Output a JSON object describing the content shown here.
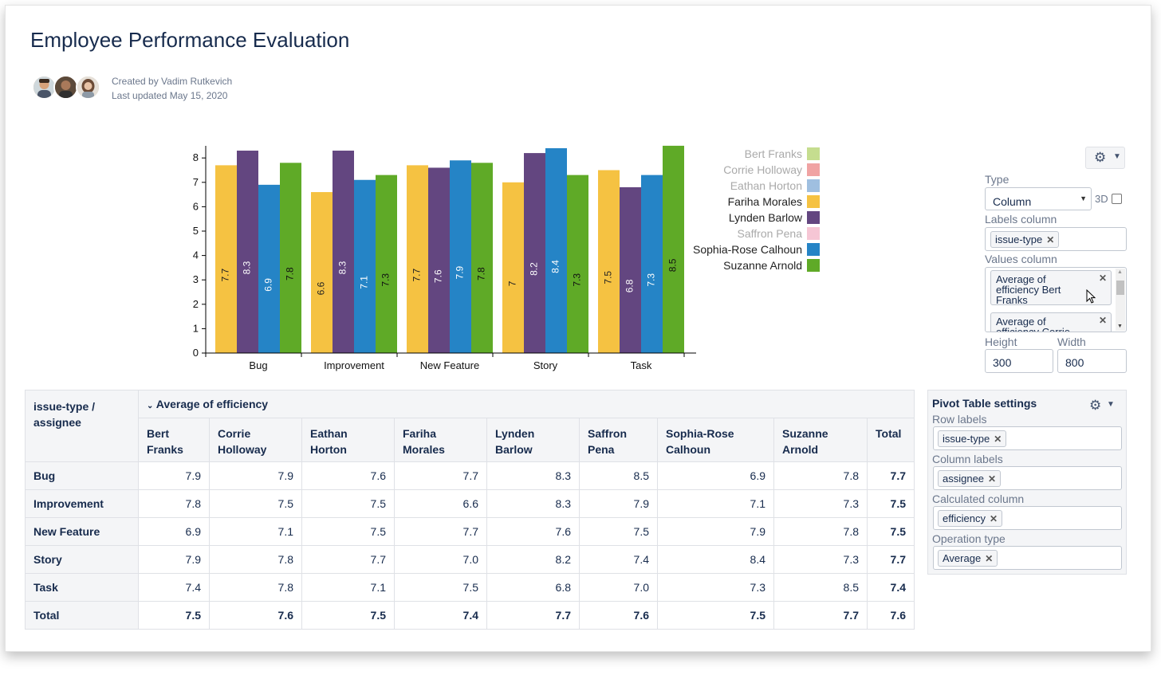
{
  "page": {
    "title": "Employee Performance Evaluation",
    "created_by": "Created by Vadim Rutkevich",
    "last_updated": "Last updated May 15, 2020"
  },
  "colors": {
    "bert_franks": "#c5dd8f",
    "corrie_holloway": "#f0a3a3",
    "eathan_horton": "#9fbfe0",
    "fariha_morales": "#f5c242",
    "lynden_barlow": "#634680",
    "saffron_pena": "#f6c6d5",
    "sophia_rose_calhoun": "#2584c6",
    "suzanne_arnold": "#5faa27"
  },
  "chart_data": {
    "type": "bar",
    "categories": [
      "Bug",
      "Improvement",
      "New Feature",
      "Story",
      "Task"
    ],
    "ylim": [
      0,
      8.5
    ],
    "yticks": [
      "0",
      "1",
      "2",
      "3",
      "4",
      "5",
      "6",
      "7",
      "8"
    ],
    "series": [
      {
        "name": "Fariha Morales",
        "color": "#f5c242",
        "values": [
          7.7,
          6.6,
          7.7,
          7,
          7.5
        ]
      },
      {
        "name": "Lynden Barlow",
        "color": "#634680",
        "values": [
          8.3,
          8.3,
          7.6,
          8.2,
          6.8
        ]
      },
      {
        "name": "Sophia-Rose Calhoun",
        "color": "#2584c6",
        "values": [
          6.9,
          7.1,
          7.9,
          8.4,
          7.3
        ]
      },
      {
        "name": "Suzanne Arnold",
        "color": "#5faa27",
        "values": [
          7.8,
          7.3,
          7.8,
          7.3,
          8.5
        ]
      }
    ],
    "legend": [
      {
        "name": "Bert Franks",
        "color": "#c5dd8f",
        "muted": true
      },
      {
        "name": "Corrie Holloway",
        "color": "#f0a3a3",
        "muted": true
      },
      {
        "name": "Eathan Horton",
        "color": "#9fbfe0",
        "muted": true
      },
      {
        "name": "Fariha Morales",
        "color": "#f5c242",
        "muted": false
      },
      {
        "name": "Lynden Barlow",
        "color": "#634680",
        "muted": false
      },
      {
        "name": "Saffron Pena",
        "color": "#f6c6d5",
        "muted": true
      },
      {
        "name": "Sophia-Rose Calhoun",
        "color": "#2584c6",
        "muted": false
      },
      {
        "name": "Suzanne Arnold",
        "color": "#5faa27",
        "muted": false
      }
    ],
    "legend_placement": "right"
  },
  "chart_settings": {
    "type_label": "Type",
    "type_value": "Column",
    "three_d_label": "3D",
    "labels_column_label": "Labels column",
    "labels_column_tag": "issue-type",
    "values_column_label": "Values column",
    "values_tags": [
      "Average of efficiency Bert Franks",
      "Average of efficiency Corrie"
    ],
    "height_label": "Height",
    "height_value": "300",
    "width_label": "Width",
    "width_value": "800"
  },
  "pivot": {
    "corner_header": "issue-type / assignee",
    "group_header": "Average of efficiency",
    "columns": [
      "Bert Franks",
      "Corrie Holloway",
      "Eathan Horton",
      "Fariha Morales",
      "Lynden Barlow",
      "Saffron Pena",
      "Sophia-Rose Calhoun",
      "Suzanne Arnold",
      "Total"
    ],
    "rows": [
      {
        "label": "Bug",
        "values": [
          "7.9",
          "7.9",
          "7.6",
          "7.7",
          "8.3",
          "8.5",
          "6.9",
          "7.8",
          "7.7"
        ]
      },
      {
        "label": "Improvement",
        "values": [
          "7.8",
          "7.5",
          "7.5",
          "6.6",
          "8.3",
          "7.9",
          "7.1",
          "7.3",
          "7.5"
        ]
      },
      {
        "label": "New Feature",
        "values": [
          "6.9",
          "7.1",
          "7.5",
          "7.7",
          "7.6",
          "7.5",
          "7.9",
          "7.8",
          "7.5"
        ]
      },
      {
        "label": "Story",
        "values": [
          "7.9",
          "7.8",
          "7.7",
          "7.0",
          "8.2",
          "7.4",
          "8.4",
          "7.3",
          "7.7"
        ]
      },
      {
        "label": "Task",
        "values": [
          "7.4",
          "7.8",
          "7.1",
          "7.5",
          "6.8",
          "7.0",
          "7.3",
          "8.5",
          "7.4"
        ]
      },
      {
        "label": "Total",
        "values": [
          "7.5",
          "7.6",
          "7.5",
          "7.4",
          "7.7",
          "7.6",
          "7.5",
          "7.7",
          "7.6"
        ]
      }
    ]
  },
  "pivot_settings": {
    "title": "Pivot Table settings",
    "row_labels_label": "Row labels",
    "row_labels_tag": "issue-type",
    "column_labels_label": "Column labels",
    "column_labels_tag": "assignee",
    "calculated_column_label": "Calculated column",
    "calculated_column_tag": "efficiency",
    "operation_type_label": "Operation type",
    "operation_type_tag": "Average"
  }
}
